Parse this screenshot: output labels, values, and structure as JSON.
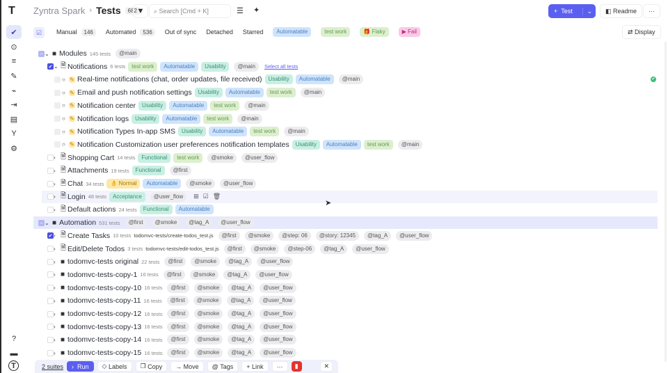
{
  "app": {
    "name": "Zyntra Spark",
    "page": "Tests",
    "count": "682"
  },
  "search": {
    "placeholder": "Search [Cmd + K]"
  },
  "actions": {
    "new_test": "Test",
    "readme": "Readme",
    "more": "···",
    "display": "Display"
  },
  "sidebar": {
    "items": [
      "tests-icon",
      "run-icon",
      "plans-icon",
      "edit-icon",
      "pulse-icon",
      "import-icon",
      "analytics-icon",
      "branch-icon",
      "settings-icon"
    ],
    "bottom": [
      "help-icon",
      "folder-icon",
      "profile-icon"
    ]
  },
  "filters": [
    {
      "label": "Manual",
      "count": "146"
    },
    {
      "label": "Automated",
      "count": "536"
    },
    {
      "label": "Out of sync"
    },
    {
      "label": "Detached"
    },
    {
      "label": "Starred"
    },
    {
      "label": "Automatable",
      "type": "auto"
    },
    {
      "label": "test work",
      "type": "work"
    },
    {
      "label": "Flaky",
      "type": "flaky"
    },
    {
      "label": "Fail",
      "type": "fail"
    }
  ],
  "tree": [
    {
      "level": 0,
      "kind": "folder",
      "open": true,
      "check": "part",
      "name": "Modules",
      "count": "145 tests",
      "tags": [
        {
          "t": "@main",
          "c": "at"
        }
      ]
    },
    {
      "level": 1,
      "kind": "file",
      "open": true,
      "check": "on",
      "name": "Notifications",
      "count": "6 tests",
      "tags": [
        {
          "t": "test work",
          "c": "work"
        },
        {
          "t": "Automatable",
          "c": "auto"
        },
        {
          "t": "Usability",
          "c": "usab"
        },
        {
          "t": "@main",
          "c": "at"
        }
      ],
      "link": "Select all tests"
    },
    {
      "level": 2,
      "kind": "test",
      "name": "Real-time notifications (chat, order updates, file received)",
      "tags": [
        {
          "t": "Usability",
          "c": "usab"
        },
        {
          "t": "Automatable",
          "c": "auto"
        },
        {
          "t": "@main",
          "c": "at"
        }
      ],
      "status": "passed"
    },
    {
      "level": 2,
      "kind": "test",
      "name": "Email and push notification settings",
      "tags": [
        {
          "t": "Usability",
          "c": "usab"
        },
        {
          "t": "Automatable",
          "c": "auto"
        },
        {
          "t": "test work",
          "c": "work"
        },
        {
          "t": "@main",
          "c": "at"
        }
      ]
    },
    {
      "level": 2,
      "kind": "test",
      "name": "Notification center",
      "tags": [
        {
          "t": "Usability",
          "c": "usab"
        },
        {
          "t": "Automatable",
          "c": "auto"
        },
        {
          "t": "test work",
          "c": "work"
        },
        {
          "t": "@main",
          "c": "at"
        }
      ]
    },
    {
      "level": 2,
      "kind": "test",
      "name": "Notification logs",
      "tags": [
        {
          "t": "Usability",
          "c": "usab"
        },
        {
          "t": "Automatable",
          "c": "auto"
        },
        {
          "t": "test work",
          "c": "work"
        },
        {
          "t": "@main",
          "c": "at"
        }
      ]
    },
    {
      "level": 2,
      "kind": "test",
      "name": "Notification Types In-app SMS",
      "tags": [
        {
          "t": "Usability",
          "c": "usab"
        },
        {
          "t": "Automatable",
          "c": "auto"
        },
        {
          "t": "test work",
          "c": "work"
        },
        {
          "t": "@main",
          "c": "at"
        }
      ]
    },
    {
      "level": 2,
      "kind": "test",
      "name": "Notification Customization user preferences notification templates",
      "tags": [
        {
          "t": "Usability",
          "c": "usab"
        },
        {
          "t": "Automatable",
          "c": "auto"
        },
        {
          "t": "test work",
          "c": "work"
        },
        {
          "t": "@main",
          "c": "at"
        }
      ]
    },
    {
      "level": 1,
      "kind": "file",
      "name": "Shopping Cart",
      "count": "14 tests",
      "tags": [
        {
          "t": "Functional",
          "c": "usab"
        },
        {
          "t": "test work",
          "c": "work"
        },
        {
          "t": "@smoke",
          "c": "at"
        },
        {
          "t": "@user_flow",
          "c": "at"
        }
      ]
    },
    {
      "level": 1,
      "kind": "file",
      "name": "Attachments",
      "count": "19 tests",
      "tags": [
        {
          "t": "Functional",
          "c": "usab"
        },
        {
          "t": "@first",
          "c": "at"
        }
      ]
    },
    {
      "level": 1,
      "kind": "file",
      "name": "Chat",
      "count": "34 tests",
      "tags": [
        {
          "t": "👌 Normal",
          "c": "norm"
        },
        {
          "t": "Automatable",
          "c": "auto"
        },
        {
          "t": "@smoke",
          "c": "at"
        },
        {
          "t": "@user_flow",
          "c": "at"
        }
      ]
    },
    {
      "level": 1,
      "kind": "file",
      "name": "Login",
      "count": "48 tests",
      "hover": true,
      "tags": [
        {
          "t": "Acceptance",
          "c": "usab"
        },
        {
          "t": "@user_flow",
          "c": "at"
        }
      ]
    },
    {
      "level": 1,
      "kind": "file",
      "name": "Default actions",
      "count": "24 tests",
      "tags": [
        {
          "t": "Functional",
          "c": "usab"
        },
        {
          "t": "Automatable",
          "c": "auto"
        }
      ]
    },
    {
      "level": 0,
      "kind": "folder",
      "open": true,
      "check": "part",
      "hl": true,
      "name": "Automation",
      "count": "531 tests",
      "tags": [
        {
          "t": "@first",
          "c": "at"
        },
        {
          "t": "@smoke",
          "c": "at"
        },
        {
          "t": "@tag_A",
          "c": "at"
        },
        {
          "t": "@user_flow",
          "c": "at"
        }
      ]
    },
    {
      "level": 1,
      "kind": "file",
      "check": "on",
      "name": "Create Tasks",
      "count": "10 tests",
      "path": "todomvc-tests/create-todos_test.js",
      "tags": [
        {
          "t": "@first",
          "c": "at"
        },
        {
          "t": "@smoke",
          "c": "at"
        },
        {
          "t": "@step: 06",
          "c": "at"
        },
        {
          "t": "@story: 12345",
          "c": "at"
        },
        {
          "t": "@tag_A",
          "c": "at"
        },
        {
          "t": "@user_flow",
          "c": "at"
        }
      ]
    },
    {
      "level": 1,
      "kind": "file",
      "name": "Edit/Delete Todos",
      "count": "3 tests",
      "path": "todomvc-tests/edit-todos_test.js",
      "tags": [
        {
          "t": "@first",
          "c": "at"
        },
        {
          "t": "@smoke",
          "c": "at"
        },
        {
          "t": "@step-06",
          "c": "at"
        },
        {
          "t": "@tag_A",
          "c": "at"
        },
        {
          "t": "@user_flow",
          "c": "at"
        }
      ]
    },
    {
      "level": 1,
      "kind": "dir",
      "name": "todomvc-tests original",
      "count": "22 tests",
      "tags": [
        {
          "t": "@first",
          "c": "at"
        },
        {
          "t": "@smoke",
          "c": "at"
        },
        {
          "t": "@tag_A",
          "c": "at"
        },
        {
          "t": "@user_flow",
          "c": "at"
        }
      ]
    },
    {
      "level": 1,
      "kind": "dir",
      "name": "todomvc-tests-copy-1",
      "count": "16 tests",
      "tags": [
        {
          "t": "@first",
          "c": "at"
        },
        {
          "t": "@smoke",
          "c": "at"
        },
        {
          "t": "@tag_A",
          "c": "at"
        },
        {
          "t": "@user_flow",
          "c": "at"
        }
      ]
    },
    {
      "level": 1,
      "kind": "dir",
      "name": "todomvc-tests-copy-10",
      "count": "16 tests",
      "tags": [
        {
          "t": "@first",
          "c": "at"
        },
        {
          "t": "@smoke",
          "c": "at"
        },
        {
          "t": "@tag_A",
          "c": "at"
        },
        {
          "t": "@user_flow",
          "c": "at"
        }
      ]
    },
    {
      "level": 1,
      "kind": "dir",
      "name": "todomvc-tests-copy-11",
      "count": "16 tests",
      "tags": [
        {
          "t": "@first",
          "c": "at"
        },
        {
          "t": "@smoke",
          "c": "at"
        },
        {
          "t": "@tag_A",
          "c": "at"
        },
        {
          "t": "@user_flow",
          "c": "at"
        }
      ]
    },
    {
      "level": 1,
      "kind": "dir",
      "name": "todomvc-tests-copy-12",
      "count": "16 tests",
      "tags": [
        {
          "t": "@first",
          "c": "at"
        },
        {
          "t": "@smoke",
          "c": "at"
        },
        {
          "t": "@tag_A",
          "c": "at"
        },
        {
          "t": "@user_flow",
          "c": "at"
        }
      ]
    },
    {
      "level": 1,
      "kind": "dir",
      "name": "todomvc-tests-copy-13",
      "count": "16 tests",
      "tags": [
        {
          "t": "@first",
          "c": "at"
        },
        {
          "t": "@smoke",
          "c": "at"
        },
        {
          "t": "@tag_A",
          "c": "at"
        },
        {
          "t": "@user_flow",
          "c": "at"
        }
      ]
    },
    {
      "level": 1,
      "kind": "dir",
      "name": "todomvc-tests-copy-14",
      "count": "16 tests",
      "tags": [
        {
          "t": "@first",
          "c": "at"
        },
        {
          "t": "@smoke",
          "c": "at"
        },
        {
          "t": "@tag_A",
          "c": "at"
        },
        {
          "t": "@user_flow",
          "c": "at"
        }
      ]
    },
    {
      "level": 1,
      "kind": "dir",
      "name": "todomvc-tests-copy-15",
      "count": "16 tests",
      "tags": [
        {
          "t": "@first",
          "c": "at"
        },
        {
          "t": "@smoke",
          "c": "at"
        },
        {
          "t": "@tag_A",
          "c": "at"
        },
        {
          "t": "@user_flow",
          "c": "at"
        }
      ]
    }
  ],
  "bulk": {
    "selected": "2 suites",
    "run": "Run",
    "labels": "Labels",
    "copy": "Copy",
    "move": "Move",
    "tags": "Tags",
    "link": "Link",
    "more": "···",
    "close": "✕"
  },
  "colors": {
    "accent": "#5b5ff0",
    "danger": "#e5322f",
    "highlight": "#e6e9fb"
  }
}
